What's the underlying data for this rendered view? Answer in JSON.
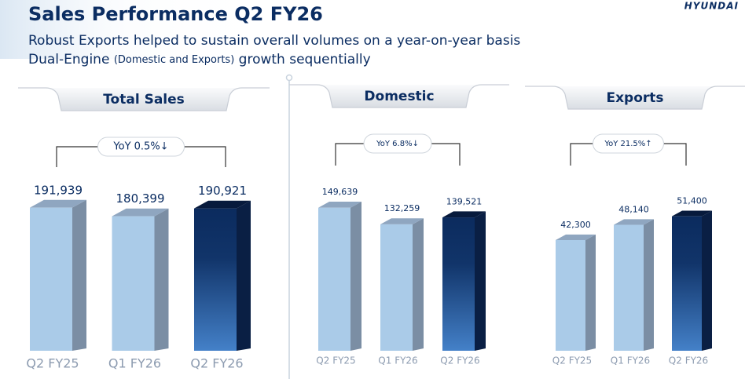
{
  "header": {
    "title": "Sales Performance Q2 FY26",
    "subtitle": "Robust Exports helped to sustain overall volumes on a year-on-year basis",
    "subtitle2": {
      "lead": "Dual-Engine",
      "aside": "(Domestic and Exports)",
      "tail": "growth sequentially"
    },
    "logo": "HYUNDAI"
  },
  "chart_data": [
    {
      "type": "bar",
      "title": "Total Sales",
      "annotation": "YoY 0.5%↓",
      "categories": [
        "Q2 FY25",
        "Q1 FY26",
        "Q2 FY26"
      ],
      "values": [
        191939,
        180399,
        190921
      ],
      "value_labels": [
        "191,939",
        "180,399",
        "190,921"
      ],
      "colors": [
        "#aacbe8",
        "#aacbe8",
        "#0b2b5e"
      ],
      "ylim": [
        0,
        200000
      ]
    },
    {
      "type": "bar",
      "title": "Domestic",
      "annotation": "YoY 6.8%↓",
      "categories": [
        "Q2 FY25",
        "Q1 FY26",
        "Q2 FY26"
      ],
      "values": [
        149639,
        132259,
        139521
      ],
      "value_labels": [
        "149,639",
        "132,259",
        "139,521"
      ],
      "colors": [
        "#aacbe8",
        "#aacbe8",
        "#0b2b5e"
      ],
      "ylim": [
        0,
        156000
      ]
    },
    {
      "type": "bar",
      "title": "Exports",
      "annotation": "YoY 21.5%↑",
      "categories": [
        "Q2 FY25",
        "Q1 FY26",
        "Q2 FY26"
      ],
      "values": [
        42300,
        48140,
        51400
      ],
      "value_labels": [
        "42,300",
        "48,140",
        "51,400"
      ],
      "colors": [
        "#aacbe8",
        "#aacbe8",
        "#0b2b5e"
      ],
      "ylim": [
        0,
        57000
      ]
    }
  ]
}
